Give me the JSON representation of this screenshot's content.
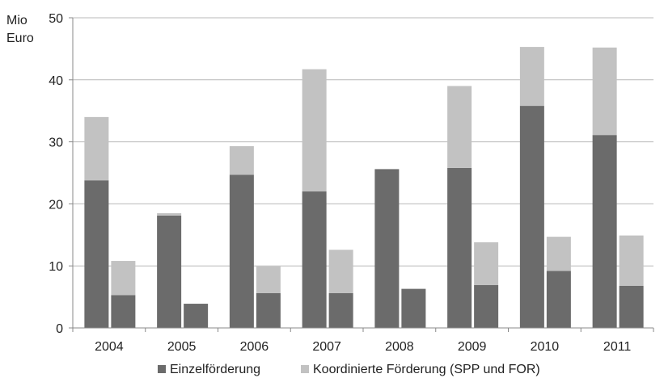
{
  "chart_data": {
    "type": "bar",
    "stacked": true,
    "grouped": true,
    "categories": [
      "2004",
      "2005",
      "2006",
      "2007",
      "2008",
      "2009",
      "2010",
      "2011"
    ],
    "ylabel": [
      "Mio",
      "Euro"
    ],
    "ylim": [
      0,
      50
    ],
    "yticks": [
      0,
      10,
      20,
      30,
      40,
      50
    ],
    "grid": true,
    "legend_position": "bottom",
    "colors": {
      "Einzelförderung": "#6b6b6b",
      "Koordinierte Förderung (SPP und FOR)": "#c2c2c2"
    },
    "groups": [
      {
        "series": [
          {
            "name": "Einzelförderung",
            "values": [
              23.8,
              18.1,
              24.7,
              22.0,
              25.6,
              25.8,
              35.8,
              31.1
            ]
          },
          {
            "name": "Koordinierte Förderung (SPP und FOR)",
            "values": [
              10.2,
              0.4,
              4.6,
              19.7,
              0.0,
              13.2,
              9.5,
              14.1
            ]
          }
        ]
      },
      {
        "series": [
          {
            "name": "Einzelförderung",
            "values": [
              5.3,
              3.9,
              5.6,
              5.6,
              6.3,
              6.9,
              9.2,
              6.8
            ]
          },
          {
            "name": "Koordinierte Förderung (SPP und FOR)",
            "values": [
              5.5,
              0.0,
              4.3,
              7.0,
              0.0,
              6.9,
              5.5,
              8.1
            ]
          }
        ]
      }
    ],
    "legend": [
      "Einzelförderung",
      "Koordinierte Förderung (SPP und FOR)"
    ]
  }
}
